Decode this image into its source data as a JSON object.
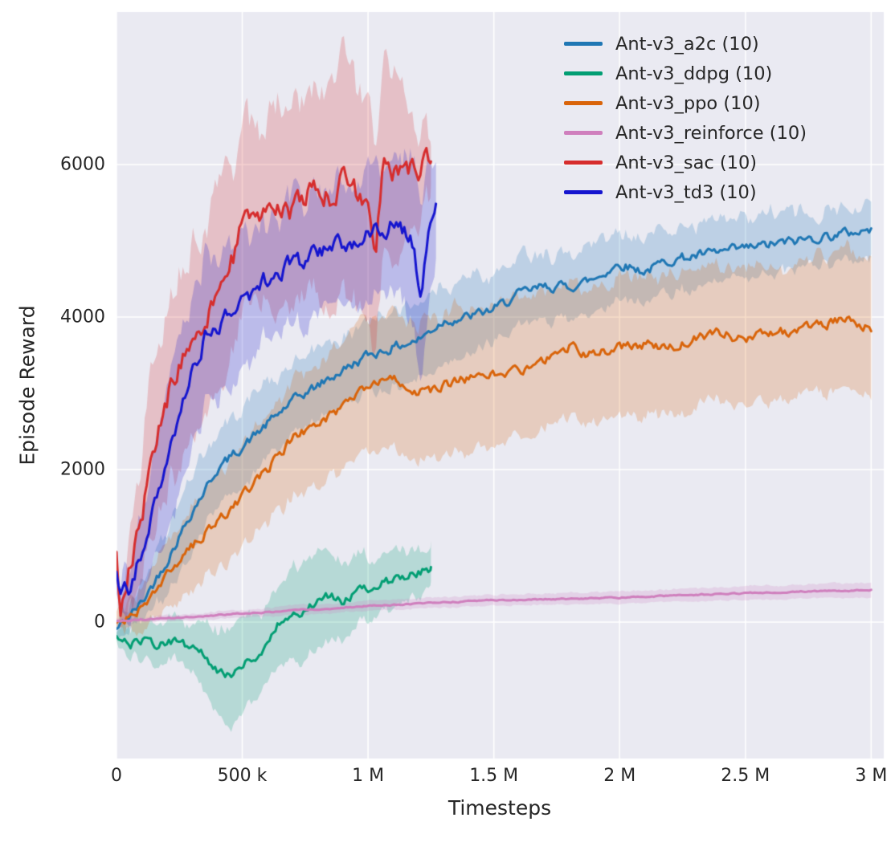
{
  "chart_data": {
    "type": "line",
    "title": "",
    "xlabel": "Timesteps",
    "ylabel": "Episode Reward",
    "xlim": [
      0,
      3050000
    ],
    "ylim": [
      -1790,
      8000
    ],
    "grid": true,
    "background": "#eaeaf2",
    "grid_color": "#ffffff",
    "legend_position": "upper right",
    "band_alpha": 0.22,
    "line_width": 3,
    "x_unit_multiplier": 1000,
    "sample_step": 8,
    "x_ticks": [
      {
        "value": 0,
        "label": "0"
      },
      {
        "value": 500000,
        "label": "500 k"
      },
      {
        "value": 1000000,
        "label": "1 M"
      },
      {
        "value": 1500000,
        "label": "1.5 M"
      },
      {
        "value": 2000000,
        "label": "2 M"
      },
      {
        "value": 2500000,
        "label": "2.5 M"
      },
      {
        "value": 3000000,
        "label": "3 M"
      }
    ],
    "y_ticks": [
      {
        "value": 0,
        "label": "0"
      },
      {
        "value": 2000,
        "label": "2000"
      },
      {
        "value": 4000,
        "label": "4000"
      },
      {
        "value": 6000,
        "label": "6000"
      }
    ],
    "series": [
      {
        "name": "Ant-v3_a2c (10)",
        "color": "#1f77b4",
        "noise": 110,
        "x": [
          0,
          100,
          200,
          300,
          400,
          500,
          600,
          700,
          800,
          900,
          1000,
          1100,
          1200,
          1300,
          1400,
          1500,
          1600,
          1700,
          1800,
          1900,
          2000,
          2100,
          2200,
          2300,
          2400,
          2500,
          2600,
          2700,
          2800,
          2900,
          3000
        ],
        "mean": [
          -100,
          250,
          800,
          1450,
          2000,
          2300,
          2600,
          2900,
          3100,
          3300,
          3500,
          3600,
          3700,
          3950,
          4000,
          4100,
          4300,
          4400,
          4400,
          4500,
          4700,
          4600,
          4750,
          4800,
          4850,
          4900,
          4950,
          5000,
          5050,
          5100,
          5150
        ],
        "band": [
          100,
          250,
          400,
          500,
          500,
          500,
          500,
          450,
          450,
          450,
          450,
          500,
          500,
          500,
          500,
          450,
          450,
          450,
          400,
          450,
          400,
          450,
          400,
          400,
          400,
          400,
          400,
          350,
          350,
          350,
          350
        ]
      },
      {
        "name": "Ant-v3_ddpg (10)",
        "color": "#029e73",
        "noise": 100,
        "x": [
          0,
          50,
          100,
          150,
          200,
          250,
          300,
          350,
          400,
          450,
          500,
          550,
          600,
          650,
          700,
          750,
          800,
          850,
          900,
          950,
          1000,
          1050,
          1100,
          1150,
          1200,
          1250
        ],
        "mean": [
          -150,
          -300,
          -250,
          -300,
          -250,
          -280,
          -350,
          -420,
          -650,
          -700,
          -550,
          -480,
          -300,
          0,
          100,
          150,
          300,
          350,
          250,
          400,
          450,
          500,
          550,
          600,
          650,
          700
        ],
        "band": [
          100,
          200,
          250,
          250,
          250,
          300,
          350,
          450,
          550,
          650,
          600,
          550,
          500,
          550,
          600,
          650,
          600,
          550,
          500,
          450,
          400,
          350,
          350,
          300,
          300,
          250
        ]
      },
      {
        "name": "Ant-v3_ppo (10)",
        "color": "#d9640a",
        "noise": 110,
        "x": [
          0,
          100,
          200,
          300,
          400,
          500,
          600,
          700,
          800,
          900,
          1000,
          1100,
          1200,
          1300,
          1400,
          1500,
          1600,
          1700,
          1800,
          1900,
          2000,
          2100,
          2200,
          2300,
          2400,
          2500,
          2600,
          2700,
          2800,
          2900,
          3000
        ],
        "mean": [
          -50,
          200,
          600,
          1000,
          1300,
          1650,
          2000,
          2400,
          2600,
          2800,
          3100,
          3200,
          3000,
          3100,
          3200,
          3250,
          3300,
          3450,
          3600,
          3500,
          3600,
          3650,
          3600,
          3700,
          3800,
          3700,
          3800,
          3800,
          3900,
          3950,
          3850
        ],
        "band": [
          80,
          300,
          450,
          550,
          600,
          650,
          700,
          750,
          800,
          850,
          850,
          900,
          900,
          900,
          950,
          950,
          900,
          900,
          900,
          900,
          900,
          900,
          900,
          900,
          900,
          900,
          900,
          850,
          900,
          900,
          900
        ]
      },
      {
        "name": "Ant-v3_reinforce (10)",
        "color": "#cf7fbd",
        "noise": 14,
        "x": [
          0,
          250,
          500,
          750,
          1000,
          1250,
          1500,
          1750,
          2000,
          2250,
          2500,
          2750,
          3000
        ],
        "mean": [
          10,
          60,
          110,
          160,
          210,
          250,
          285,
          300,
          320,
          350,
          380,
          400,
          420
        ],
        "band": [
          30,
          40,
          50,
          60,
          60,
          70,
          70,
          70,
          80,
          80,
          90,
          90,
          100
        ]
      },
      {
        "name": "Ant-v3_sac (10)",
        "color": "#d62d2d",
        "noise": 260,
        "x": [
          0,
          15,
          50,
          100,
          150,
          200,
          250,
          300,
          350,
          400,
          450,
          500,
          550,
          600,
          650,
          700,
          750,
          800,
          850,
          900,
          950,
          1000,
          1030,
          1060,
          1100,
          1150,
          1200,
          1250
        ],
        "mean": [
          950,
          150,
          700,
          1400,
          2200,
          2900,
          3400,
          3800,
          4000,
          4200,
          4600,
          5200,
          5250,
          5350,
          5450,
          5350,
          5600,
          5650,
          5550,
          5800,
          5650,
          5400,
          4900,
          5900,
          5900,
          6000,
          5950,
          6050
        ],
        "band": [
          150,
          250,
          500,
          800,
          1100,
          1300,
          1300,
          1300,
          1300,
          1300,
          1300,
          1200,
          1100,
          1200,
          1300,
          1400,
          1300,
          1400,
          1500,
          1600,
          1500,
          1500,
          1400,
          1200,
          1300,
          1000,
          700,
          400
        ]
      },
      {
        "name": "Ant-v3_td3 (10)",
        "color": "#1515cf",
        "noise": 200,
        "x": [
          0,
          15,
          50,
          100,
          150,
          200,
          250,
          300,
          350,
          400,
          450,
          500,
          550,
          600,
          650,
          700,
          750,
          800,
          850,
          900,
          950,
          1000,
          1050,
          1100,
          1150,
          1185,
          1210,
          1240,
          1270
        ],
        "mean": [
          750,
          350,
          450,
          900,
          1500,
          2100,
          2700,
          3300,
          3700,
          3900,
          4050,
          4200,
          4350,
          4500,
          4600,
          4700,
          4750,
          4850,
          4900,
          4950,
          5000,
          5050,
          5150,
          5200,
          5100,
          4900,
          4200,
          5100,
          5400
        ],
        "band": [
          200,
          250,
          400,
          600,
          800,
          900,
          1000,
          1000,
          950,
          900,
          900,
          850,
          800,
          800,
          800,
          850,
          800,
          800,
          750,
          800,
          800,
          850,
          800,
          900,
          1000,
          1100,
          1200,
          900,
          700
        ]
      }
    ]
  }
}
